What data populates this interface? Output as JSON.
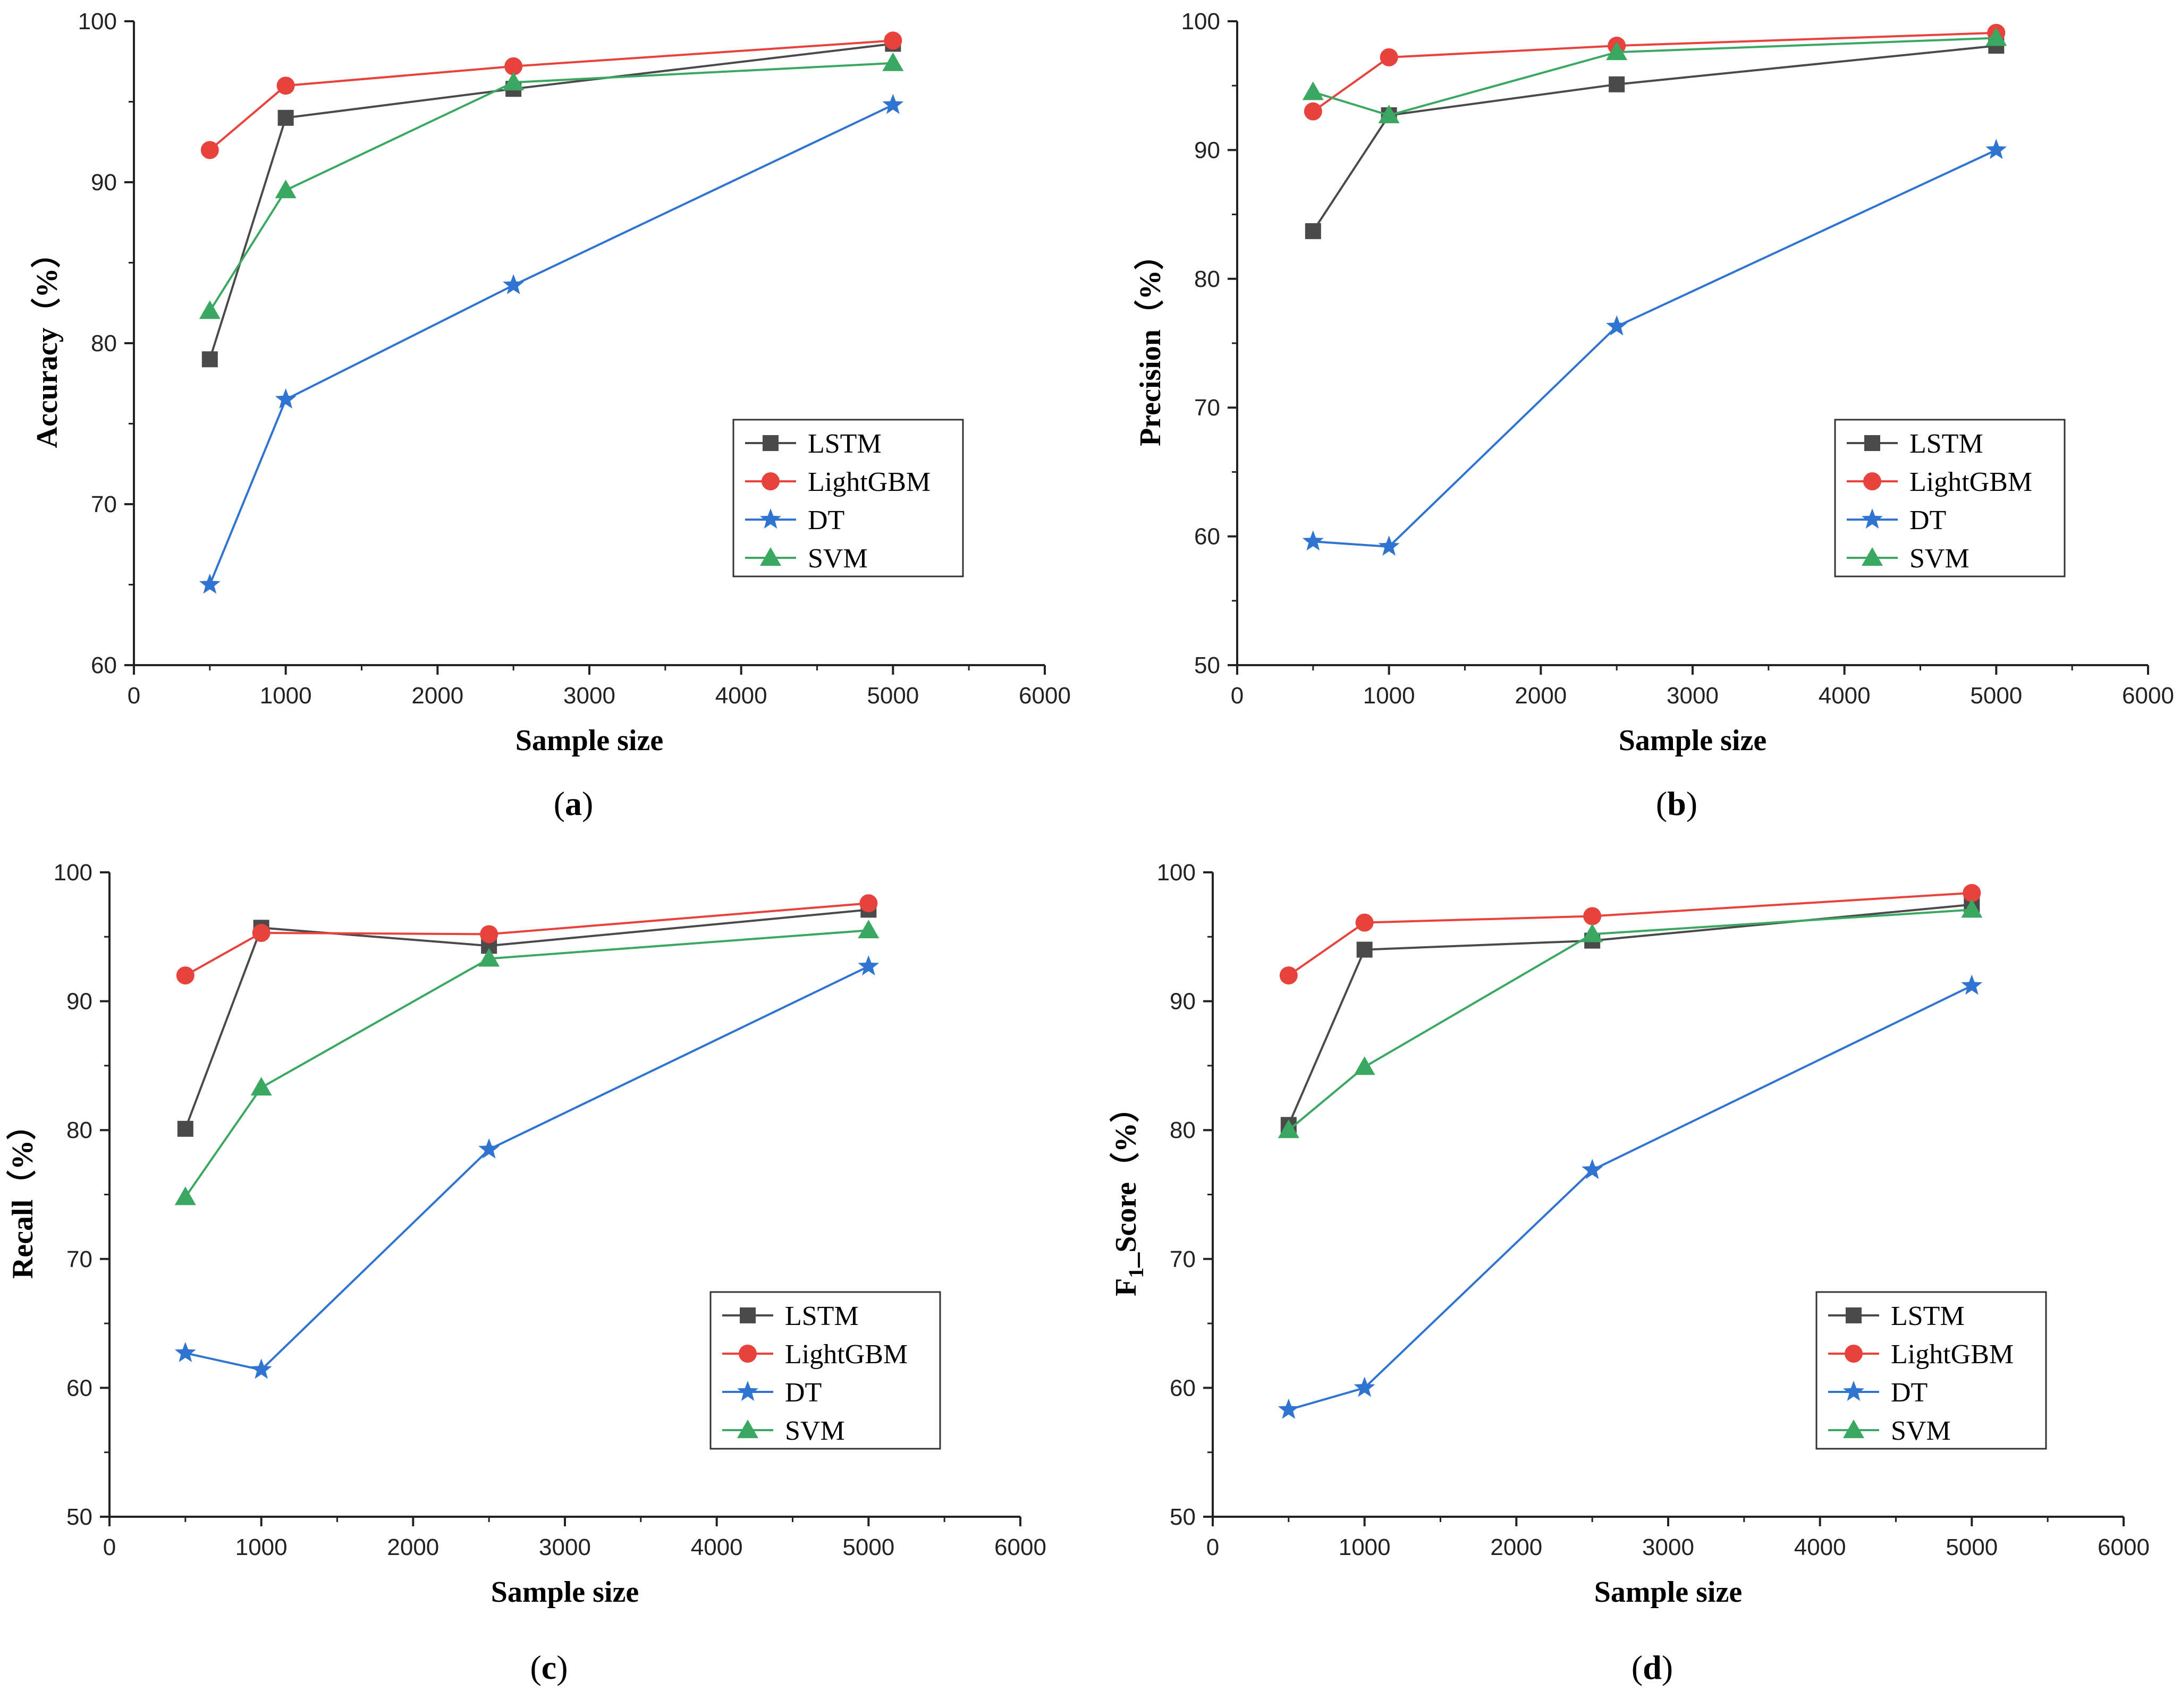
{
  "colors": {
    "LSTM": "#4a4a4a",
    "LightGBM": "#e8423d",
    "DT": "#2f74d0",
    "SVM": "#3aa860"
  },
  "panel_labels": [
    {
      "open": "(",
      "letter": "a",
      "close": ")"
    },
    {
      "open": "(",
      "letter": "b",
      "close": ")"
    },
    {
      "open": "(",
      "letter": "c",
      "close": ")"
    },
    {
      "open": "(",
      "letter": "d",
      "close": ")"
    }
  ],
  "chart_data": [
    {
      "type": "line",
      "xlabel": "Sample size",
      "ylabel": "Accuracy（%）",
      "xlim": [
        0,
        6000
      ],
      "ylim": [
        60,
        100
      ],
      "xticks": [
        0,
        1000,
        2000,
        3000,
        4000,
        5000,
        6000
      ],
      "yticks": [
        60,
        70,
        80,
        90,
        100
      ],
      "legend": "lower-right",
      "x": [
        500,
        1000,
        2500,
        5000
      ],
      "series": [
        {
          "name": "LSTM",
          "marker": "square",
          "values": [
            79.0,
            94.0,
            95.8,
            98.6
          ]
        },
        {
          "name": "LightGBM",
          "marker": "circle",
          "values": [
            92.0,
            96.0,
            97.2,
            98.8
          ]
        },
        {
          "name": "DT",
          "marker": "star",
          "values": [
            65.0,
            76.5,
            83.6,
            94.8
          ]
        },
        {
          "name": "SVM",
          "marker": "triangle",
          "values": [
            82.0,
            89.5,
            96.2,
            97.4
          ]
        }
      ]
    },
    {
      "type": "line",
      "xlabel": "Sample size",
      "ylabel": "Precision（%）",
      "xlim": [
        0,
        6000
      ],
      "ylim": [
        50,
        100
      ],
      "xticks": [
        0,
        1000,
        2000,
        3000,
        4000,
        5000,
        6000
      ],
      "yticks": [
        50,
        60,
        70,
        80,
        90,
        100
      ],
      "legend": "lower-right",
      "x": [
        500,
        1000,
        2500,
        5000
      ],
      "series": [
        {
          "name": "LSTM",
          "marker": "square",
          "values": [
            83.7,
            92.7,
            95.1,
            98.1
          ]
        },
        {
          "name": "LightGBM",
          "marker": "circle",
          "values": [
            93.0,
            97.2,
            98.1,
            99.1
          ]
        },
        {
          "name": "DT",
          "marker": "star",
          "values": [
            59.6,
            59.2,
            76.3,
            90.0
          ]
        },
        {
          "name": "SVM",
          "marker": "triangle",
          "values": [
            94.5,
            92.7,
            97.6,
            98.7
          ]
        }
      ]
    },
    {
      "type": "line",
      "xlabel": "Sample size",
      "ylabel": "Recall（%）",
      "xlim": [
        0,
        6000
      ],
      "ylim": [
        50,
        100
      ],
      "xticks": [
        0,
        1000,
        2000,
        3000,
        4000,
        5000,
        6000
      ],
      "yticks": [
        50,
        60,
        70,
        80,
        90,
        100
      ],
      "legend": "lower-right",
      "x": [
        500,
        1000,
        2500,
        5000
      ],
      "series": [
        {
          "name": "LSTM",
          "marker": "square",
          "values": [
            80.1,
            95.7,
            94.3,
            97.1
          ]
        },
        {
          "name": "LightGBM",
          "marker": "circle",
          "values": [
            92.0,
            95.3,
            95.2,
            97.6
          ]
        },
        {
          "name": "DT",
          "marker": "star",
          "values": [
            62.7,
            61.4,
            78.5,
            92.7
          ]
        },
        {
          "name": "SVM",
          "marker": "triangle",
          "values": [
            74.8,
            83.3,
            93.3,
            95.5
          ]
        }
      ]
    },
    {
      "type": "line",
      "xlabel": "Sample size",
      "ylabel": "F1_Score（%）",
      "ylabel_main": "F",
      "ylabel_sub": "1",
      "ylabel_rest": "_Score（%）",
      "xlim": [
        0,
        6000
      ],
      "ylim": [
        50,
        100
      ],
      "xticks": [
        0,
        1000,
        2000,
        3000,
        4000,
        5000,
        6000
      ],
      "yticks": [
        50,
        60,
        70,
        80,
        90,
        100
      ],
      "legend": "lower-right",
      "x": [
        500,
        1000,
        2500,
        5000
      ],
      "series": [
        {
          "name": "LSTM",
          "marker": "square",
          "values": [
            80.4,
            94.0,
            94.7,
            97.5
          ]
        },
        {
          "name": "LightGBM",
          "marker": "circle",
          "values": [
            92.0,
            96.1,
            96.6,
            98.4
          ]
        },
        {
          "name": "DT",
          "marker": "star",
          "values": [
            58.3,
            60.0,
            76.9,
            91.2
          ]
        },
        {
          "name": "SVM",
          "marker": "triangle",
          "values": [
            80.0,
            84.9,
            95.2,
            97.1
          ]
        }
      ]
    }
  ]
}
